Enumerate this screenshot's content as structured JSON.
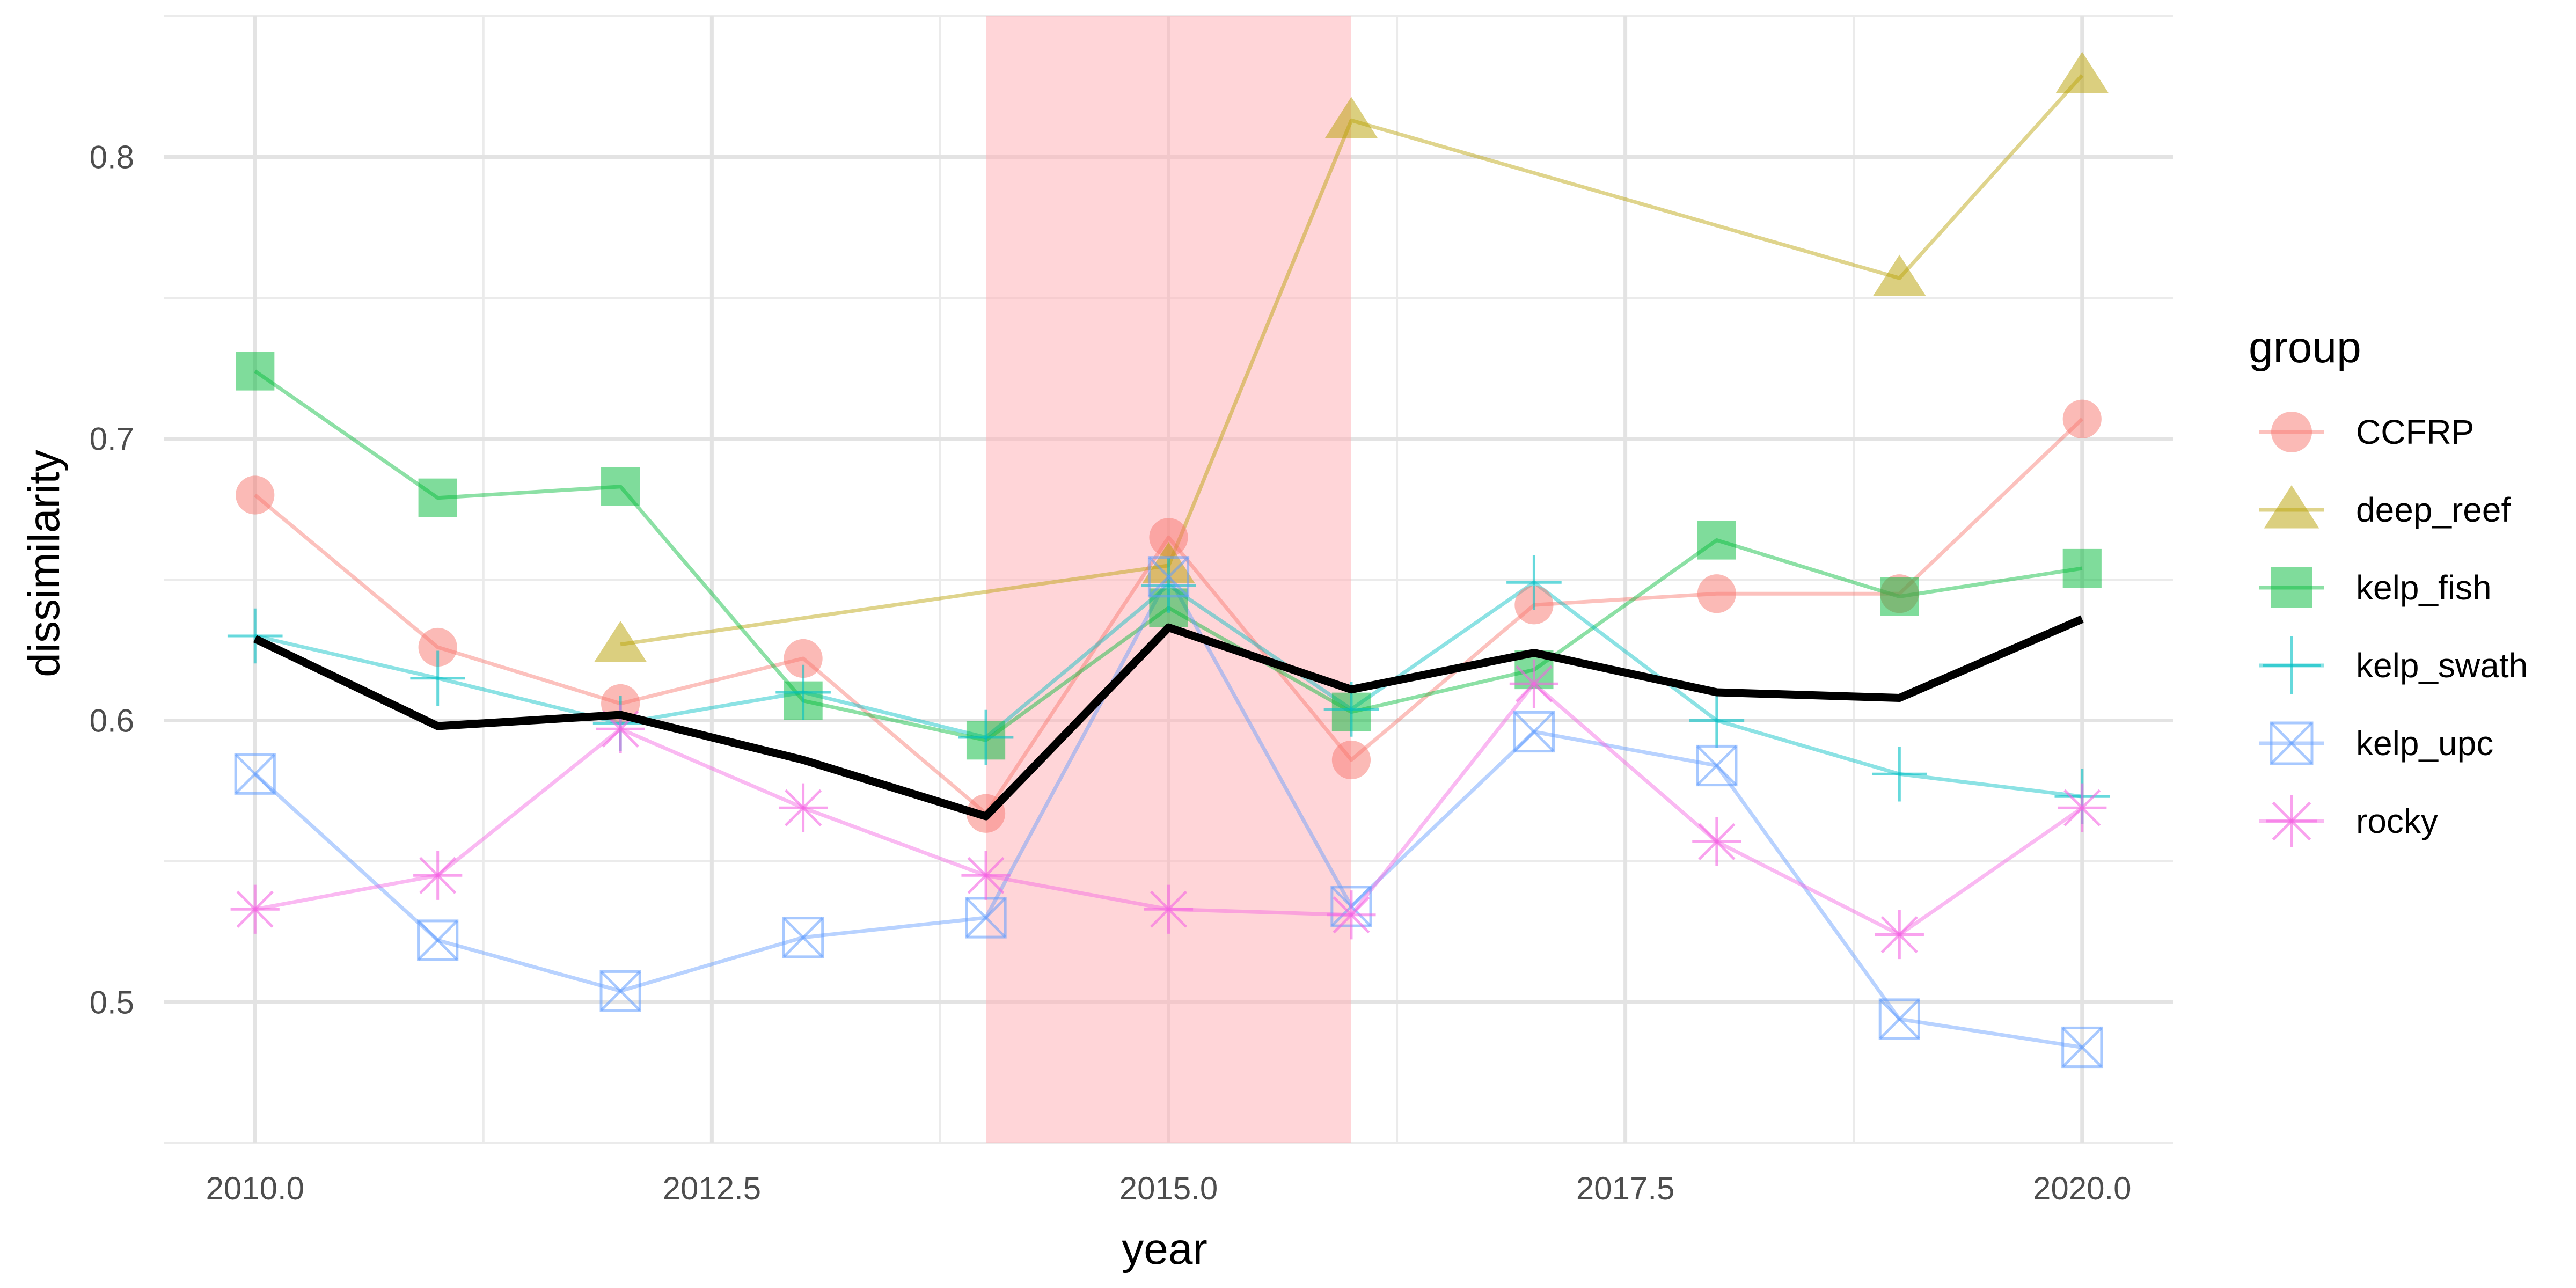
{
  "chart_data": {
    "type": "line",
    "xlabel": "year",
    "ylabel": "dissimilarity",
    "xlim": [
      2009.5,
      2020.5
    ],
    "ylim": [
      0.45,
      0.85
    ],
    "x_ticks": [
      "2010.0",
      "2012.5",
      "2015.0",
      "2017.5",
      "2020.0"
    ],
    "y_ticks": [
      "0.5",
      "0.6",
      "0.7",
      "0.8"
    ],
    "grid": true,
    "legend": {
      "title": "group",
      "position": "right"
    },
    "highlight_band": {
      "x_start": 2014,
      "x_end": 2016,
      "color": "#ffb3b8"
    },
    "series": [
      {
        "name": "CCFRP",
        "color": "#F8766D",
        "shape": "circle",
        "x": [
          2010,
          2011,
          2012,
          2013,
          2014,
          2015,
          2016,
          2017,
          2018,
          2019,
          2020
        ],
        "y": [
          0.68,
          0.626,
          0.606,
          0.622,
          0.567,
          0.665,
          0.586,
          0.641,
          0.645,
          0.645,
          0.707
        ]
      },
      {
        "name": "deep_reef",
        "color": "#B79F00",
        "shape": "triangle",
        "x": [
          2012,
          2015,
          2016,
          2019,
          2020
        ],
        "y": [
          0.627,
          0.655,
          0.813,
          0.757,
          0.829
        ]
      },
      {
        "name": "kelp_fish",
        "color": "#00BA38",
        "shape": "square",
        "x": [
          2010,
          2011,
          2012,
          2013,
          2014,
          2015,
          2016,
          2017,
          2018,
          2019,
          2020
        ],
        "y": [
          0.724,
          0.679,
          0.683,
          0.607,
          0.593,
          0.64,
          0.603,
          0.618,
          0.664,
          0.644,
          0.654
        ]
      },
      {
        "name": "kelp_swath",
        "color": "#00BFC4",
        "shape": "plus",
        "x": [
          2010,
          2011,
          2012,
          2013,
          2014,
          2015,
          2016,
          2017,
          2018,
          2019,
          2020
        ],
        "y": [
          0.63,
          0.615,
          0.599,
          0.61,
          0.594,
          0.648,
          0.604,
          0.649,
          0.6,
          0.581,
          0.573
        ]
      },
      {
        "name": "kelp_upc",
        "color": "#619CFF",
        "shape": "boxcross",
        "x": [
          2010,
          2011,
          2012,
          2013,
          2014,
          2015,
          2016,
          2017,
          2018,
          2019,
          2020
        ],
        "y": [
          0.581,
          0.522,
          0.504,
          0.523,
          0.53,
          0.651,
          0.534,
          0.596,
          0.584,
          0.494,
          0.484
        ]
      },
      {
        "name": "rocky",
        "color": "#F564E3",
        "shape": "asterisk",
        "x": [
          2010,
          2011,
          2012,
          2013,
          2014,
          2015,
          2016,
          2017,
          2018,
          2019,
          2020
        ],
        "y": [
          0.533,
          0.545,
          0.597,
          0.569,
          0.545,
          0.533,
          0.531,
          0.613,
          0.557,
          0.524,
          0.569
        ]
      }
    ],
    "mean_line": {
      "color": "#000000",
      "x": [
        2010,
        2011,
        2012,
        2013,
        2014,
        2015,
        2016,
        2017,
        2018,
        2019,
        2020
      ],
      "y": [
        0.629,
        0.598,
        0.602,
        0.586,
        0.566,
        0.633,
        0.611,
        0.624,
        0.61,
        0.608,
        0.636
      ]
    }
  }
}
